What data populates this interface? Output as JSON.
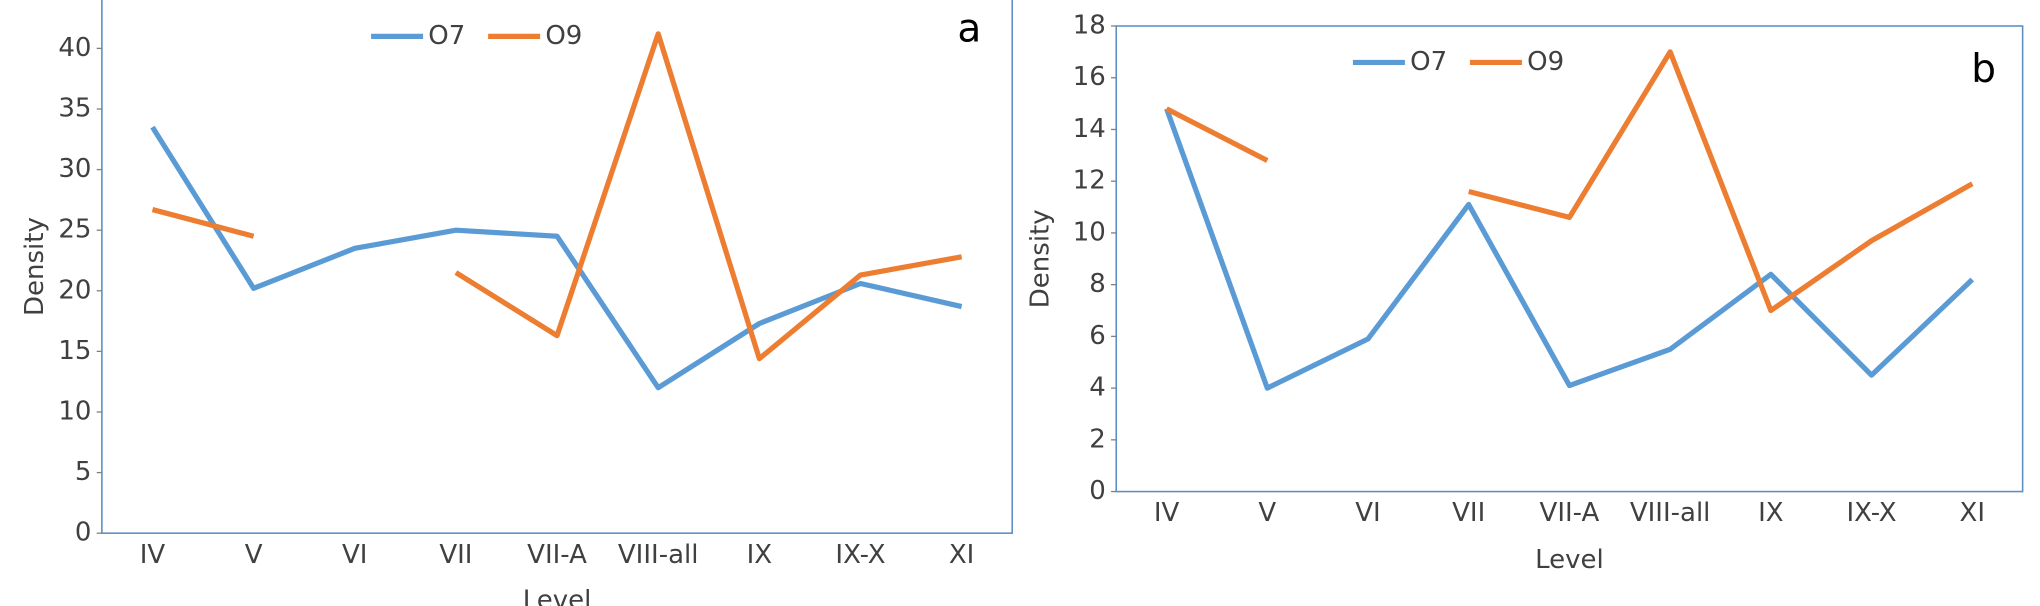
{
  "chart_data": [
    {
      "type": "line",
      "annotation": "a",
      "x_label": "Level",
      "y_label": "Density",
      "categories": [
        "IV",
        "V",
        "VI",
        "VII",
        "VII-A",
        "VIII-all",
        "IX",
        "IX-X",
        "XI"
      ],
      "series": [
        {
          "name": "O7",
          "color": "#5b9bd5",
          "values": [
            33.5,
            20.2,
            23.5,
            25,
            24.5,
            12,
            17.3,
            20.6,
            18.7
          ]
        },
        {
          "name": "O9",
          "color": "#ed7d31",
          "values": [
            26.7,
            24.5,
            null,
            21.5,
            16.3,
            41.2,
            14.4,
            21.3,
            22.8
          ]
        }
      ],
      "ylim": [
        0,
        45
      ],
      "yticks": [
        0,
        5,
        10,
        15,
        20,
        25,
        30,
        35,
        40
      ],
      "legend": "top"
    },
    {
      "type": "line",
      "annotation": "b",
      "x_label": "Level",
      "y_label": "Density",
      "categories": [
        "IV",
        "V",
        "VI",
        "VII",
        "VII-A",
        "VIII-all",
        "IX",
        "IX-X",
        "XI"
      ],
      "series": [
        {
          "name": "O7",
          "color": "#5b9bd5",
          "values": [
            14.8,
            4.0,
            5.9,
            11.1,
            4.1,
            5.5,
            8.4,
            4.5,
            8.2
          ]
        },
        {
          "name": "O9",
          "color": "#ed7d31",
          "values": [
            14.8,
            12.8,
            null,
            11.6,
            10.6,
            17.0,
            7.0,
            9.7,
            11.9
          ]
        }
      ],
      "ylim": [
        0,
        18
      ],
      "yticks": [
        0,
        2,
        4,
        6,
        8,
        10,
        12,
        14,
        16,
        18
      ],
      "legend": "top"
    }
  ]
}
